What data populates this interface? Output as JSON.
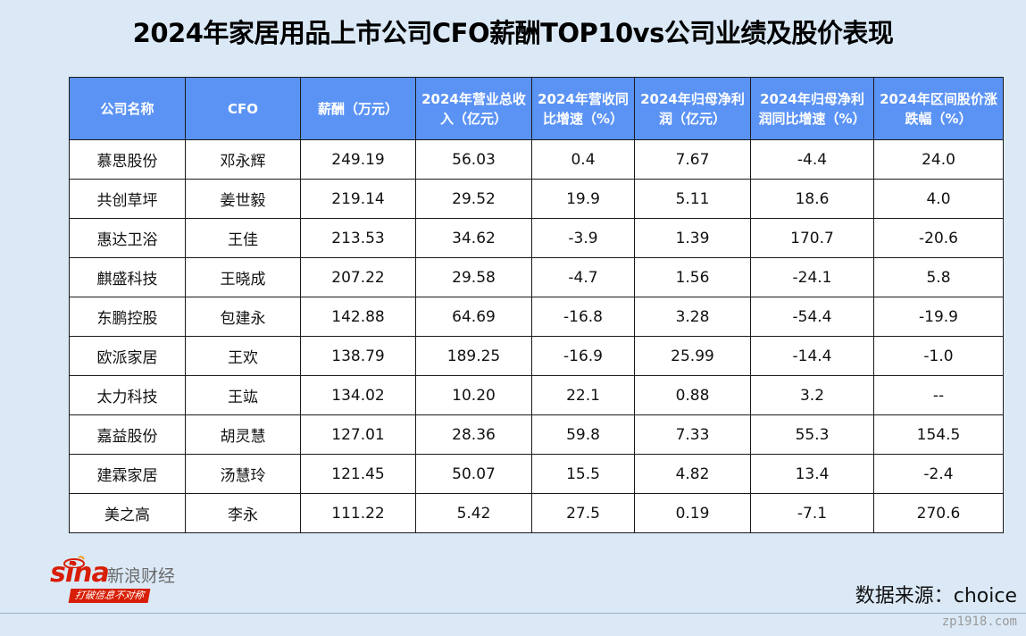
{
  "title": "2024年家居用品上市公司CFO薪酬TOP10vs公司业绩及股价表现",
  "table": {
    "headers": [
      [
        "公司名称"
      ],
      [
        "CFO"
      ],
      [
        "薪酬（万元）"
      ],
      [
        "2024年营业总收",
        "入（亿元）"
      ],
      [
        "2024年营收同",
        "比增速（%）"
      ],
      [
        "2024年归母净利",
        "润（亿元）"
      ],
      [
        "2024年归母净利",
        "润同比增速（%）"
      ],
      [
        "2024年区间股价涨",
        "跌幅（%）"
      ]
    ],
    "rows": [
      [
        "慕思股份",
        "邓永辉",
        "249.19",
        "56.03",
        "0.4",
        "7.67",
        "-4.4",
        "24.0"
      ],
      [
        "共创草坪",
        "姜世毅",
        "219.14",
        "29.52",
        "19.9",
        "5.11",
        "18.6",
        "4.0"
      ],
      [
        "惠达卫浴",
        "王佳",
        "213.53",
        "34.62",
        "-3.9",
        "1.39",
        "170.7",
        "-20.6"
      ],
      [
        "麒盛科技",
        "王晓成",
        "207.22",
        "29.58",
        "-4.7",
        "1.56",
        "-24.1",
        "5.8"
      ],
      [
        "东鹏控股",
        "包建永",
        "142.88",
        "64.69",
        "-16.8",
        "3.28",
        "-54.4",
        "-19.9"
      ],
      [
        "欧派家居",
        "王欢",
        "138.79",
        "189.25",
        "-16.9",
        "25.99",
        "-14.4",
        "-1.0"
      ],
      [
        "太力科技",
        "王竑",
        "134.02",
        "10.20",
        "22.1",
        "0.88",
        "3.2",
        "--"
      ],
      [
        "嘉益股份",
        "胡灵慧",
        "127.01",
        "28.36",
        "59.8",
        "7.33",
        "55.3",
        "154.5"
      ],
      [
        "建霖家居",
        "汤慧玲",
        "121.45",
        "50.07",
        "15.5",
        "4.82",
        "13.4",
        "-2.4"
      ],
      [
        "美之高",
        "李永",
        "111.22",
        "5.42",
        "27.5",
        "0.19",
        "-7.1",
        "270.6"
      ]
    ]
  },
  "logo": {
    "brand": "sina",
    "name": "新浪财经",
    "slogan": "打破信息不对称",
    "icon": "sina-eye-icon",
    "color": "#d81e06"
  },
  "source": "数据来源：choice",
  "watermark": "zp1918.com",
  "colors": {
    "header_bg": "#5b93f5",
    "page_bg": "#dbe9f7"
  }
}
